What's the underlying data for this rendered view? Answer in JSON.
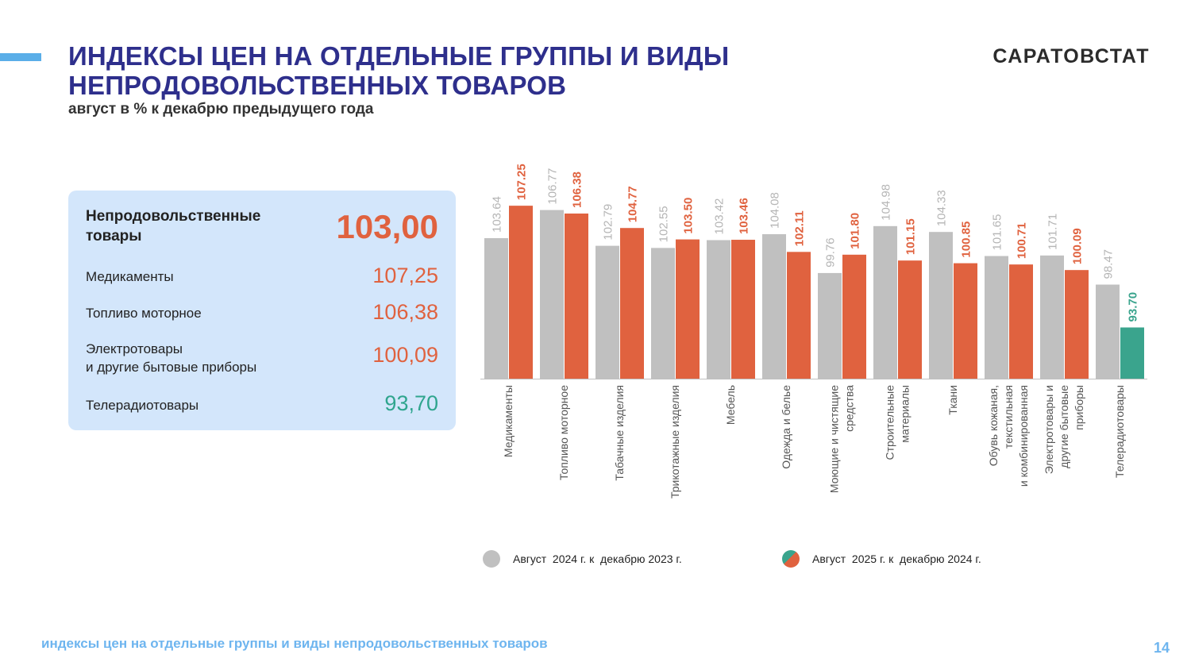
{
  "header": {
    "title_line1": "ИНДЕКСЫ ЦЕН НА ОТДЕЛЬНЫЕ ГРУППЫ И ВИДЫ",
    "title_line2": "НЕПРОДОВОЛЬСТВЕННЫХ ТОВАРОВ",
    "subtitle": "август в % к декабрю предыдущего года",
    "brand": "САРАТОВСТАТ"
  },
  "card": {
    "main_label_line1": "Непродовольственные",
    "main_label_line2": "товары",
    "main_value": "103,00",
    "rows": [
      {
        "label_line1": "Медикаменты",
        "label_line2": "",
        "value": "107,25"
      },
      {
        "label_line1": "Топливо моторное",
        "label_line2": "",
        "value": "106,38"
      },
      {
        "label_line1": "Электротовары",
        "label_line2": "и другие бытовые приборы",
        "value": "100,09"
      },
      {
        "label_line1": "Телерадиотовары",
        "label_line2": "",
        "value": "93,70"
      }
    ]
  },
  "colors": {
    "gray": "#c0c0c0",
    "orange": "#e0623f",
    "green": "#3aa48d",
    "title": "#2e2f8c",
    "card_bg": "#d3e6fb"
  },
  "chart_data": {
    "type": "bar",
    "categories": [
      [
        "Медикаменты"
      ],
      [
        "Топливо моторное"
      ],
      [
        "Табачные изделия"
      ],
      [
        "Трикотажные изделия"
      ],
      [
        "Мебель"
      ],
      [
        "Одежда и белье"
      ],
      [
        "Моющие и чистящие",
        "средства"
      ],
      [
        "Строительные",
        "материалы"
      ],
      [
        "Ткани"
      ],
      [
        "Обувь кожаная,",
        "текстильная",
        "и комбинированная"
      ],
      [
        "Электротовары и",
        "другие бытовые",
        "приборы"
      ],
      [
        "Телерадиотовары"
      ]
    ],
    "series": [
      {
        "name": "Август  2024 г. к  декабрю 2023 г.",
        "values": [
          103.64,
          106.77,
          102.79,
          102.55,
          103.42,
          104.08,
          99.76,
          104.98,
          104.33,
          101.65,
          101.71,
          98.47
        ],
        "labels": [
          "103.64",
          "106.77",
          "102.79",
          "102.55",
          "103.42",
          "104.08",
          "99.76",
          "104.98",
          "104.33",
          "101.65",
          "101.71",
          "98.47"
        ]
      },
      {
        "name": "Август  2025 г. к  декабрю 2024 г.",
        "values": [
          107.25,
          106.38,
          104.77,
          103.5,
          103.46,
          102.11,
          101.8,
          101.15,
          100.85,
          100.71,
          100.09,
          93.7
        ],
        "labels": [
          "107.25",
          "106.38",
          "104.77",
          "103.50",
          "103.46",
          "102.11",
          "101.80",
          "101.15",
          "100.85",
          "100.71",
          "100.09",
          "93.70"
        ]
      }
    ],
    "ylim": [
      88,
      108.5
    ],
    "grid": false,
    "legend_position": "bottom"
  },
  "footer": {
    "text": "индексы цен на отдельные группы и виды непродовольственных товаров",
    "page_number": "14"
  }
}
